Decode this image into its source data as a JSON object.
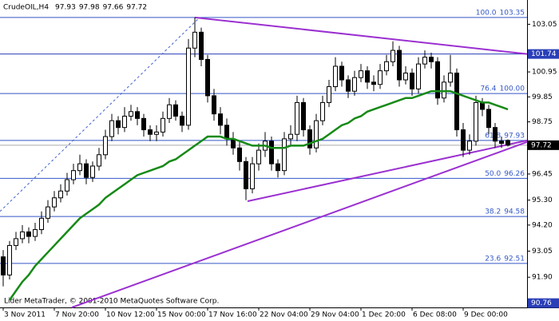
{
  "chart_data": {
    "type": "candlestick",
    "symbol": "CrudeOIL,H4",
    "copyright": "Lider MetaTrader, © 2001-2010 MetaQuotes Software Corp.",
    "open": [
      92.8,
      92.0,
      93.3,
      93.6,
      93.9,
      93.7,
      94.0,
      94.5,
      95.0,
      95.4,
      95.7,
      96.2,
      96.6,
      96.9,
      96.3,
      96.8,
      97.3,
      98.1,
      98.8,
      98.5,
      99.0,
      99.2,
      98.9,
      98.4,
      98.2,
      98.3,
      98.9,
      99.5,
      99.0,
      98.6,
      102.0,
      102.7,
      101.5,
      99.9,
      99.1,
      98.6,
      98.0,
      97.6,
      97.0,
      95.8,
      96.9,
      97.5,
      97.9,
      96.9,
      96.6,
      98.0,
      98.2,
      99.6,
      98.4,
      97.6,
      98.8,
      99.6,
      100.3,
      101.2,
      100.6,
      100.1,
      100.7,
      101.0,
      100.5,
      100.4,
      101.0,
      101.4,
      101.9,
      100.6,
      100.9,
      100.2,
      101.3,
      101.6,
      101.4,
      99.8,
      100.5,
      100.9,
      98.4,
      97.5,
      97.9,
      99.6,
      99.3,
      98.5,
      97.9,
      97.93
    ],
    "high": [
      93.1,
      93.5,
      93.9,
      94.2,
      94.1,
      94.3,
      94.8,
      95.3,
      95.7,
      96.0,
      96.5,
      96.9,
      97.3,
      97.1,
      97.0,
      97.6,
      98.4,
      99.1,
      99.0,
      99.4,
      99.5,
      99.4,
      99.1,
      98.6,
      98.6,
      99.2,
      99.8,
      99.7,
      99.2,
      102.4,
      103.35,
      102.9,
      101.7,
      100.2,
      99.4,
      98.9,
      98.3,
      97.9,
      97.2,
      97.2,
      97.8,
      98.3,
      98.1,
      97.1,
      98.3,
      98.6,
      99.9,
      99.8,
      98.6,
      99.1,
      99.9,
      100.6,
      101.6,
      101.4,
      100.8,
      101.0,
      101.3,
      101.2,
      100.8,
      101.3,
      101.7,
      102.3,
      102.1,
      101.2,
      101.1,
      101.6,
      101.9,
      101.8,
      101.6,
      100.8,
      101.7,
      101.1,
      98.7,
      98.2,
      99.9,
      99.8,
      99.5,
      98.7,
      98.1,
      97.98
    ],
    "low": [
      91.5,
      91.8,
      93.1,
      93.4,
      93.4,
      93.5,
      93.8,
      94.3,
      94.8,
      95.2,
      95.5,
      96.0,
      96.4,
      96.0,
      96.1,
      96.6,
      97.1,
      97.9,
      98.2,
      98.3,
      98.8,
      98.6,
      98.1,
      97.9,
      97.9,
      98.1,
      98.7,
      98.8,
      98.3,
      98.4,
      101.6,
      101.2,
      99.6,
      98.8,
      98.2,
      97.7,
      97.3,
      96.6,
      95.3,
      95.6,
      96.6,
      97.2,
      96.6,
      96.3,
      96.4,
      97.7,
      97.9,
      98.1,
      97.3,
      97.4,
      98.6,
      99.4,
      100.1,
      100.3,
      99.8,
      99.9,
      100.5,
      100.2,
      100.1,
      100.2,
      100.8,
      101.2,
      100.3,
      100.4,
      99.9,
      100.0,
      101.1,
      101.1,
      99.5,
      99.6,
      100.3,
      98.1,
      97.2,
      97.3,
      97.7,
      99.0,
      98.2,
      97.6,
      97.6,
      97.66
    ],
    "close": [
      92.0,
      93.3,
      93.6,
      93.9,
      93.7,
      94.0,
      94.5,
      95.0,
      95.4,
      95.7,
      96.2,
      96.6,
      96.9,
      96.3,
      96.8,
      97.3,
      98.1,
      98.8,
      98.5,
      99.0,
      99.2,
      98.9,
      98.4,
      98.2,
      98.3,
      98.9,
      99.5,
      99.0,
      98.6,
      102.0,
      102.7,
      101.5,
      99.9,
      99.1,
      98.6,
      98.0,
      97.6,
      97.0,
      95.8,
      96.9,
      97.5,
      97.9,
      96.9,
      96.6,
      98.0,
      98.2,
      99.6,
      98.4,
      97.6,
      98.8,
      99.6,
      100.3,
      101.2,
      100.6,
      100.1,
      100.7,
      101.0,
      100.5,
      100.4,
      101.0,
      101.4,
      101.9,
      100.6,
      100.9,
      100.2,
      101.3,
      101.6,
      101.4,
      99.8,
      100.5,
      100.9,
      98.4,
      97.5,
      97.9,
      99.6,
      99.3,
      98.5,
      97.9,
      97.8,
      97.72
    ],
    "ma": {
      "color": "#168a16",
      "values": [
        null,
        90.9,
        91.3,
        91.7,
        92.0,
        92.4,
        92.7,
        93.0,
        93.3,
        93.6,
        93.9,
        94.2,
        94.5,
        94.7,
        94.9,
        95.1,
        95.4,
        95.6,
        95.8,
        96.0,
        96.2,
        96.4,
        96.5,
        96.6,
        96.7,
        96.8,
        97.0,
        97.1,
        97.3,
        97.5,
        97.7,
        97.9,
        98.1,
        98.1,
        98.1,
        98.0,
        98.0,
        97.9,
        97.8,
        97.7,
        97.7,
        97.7,
        97.6,
        97.6,
        97.6,
        97.7,
        97.7,
        97.7,
        97.8,
        97.9,
        98.0,
        98.2,
        98.4,
        98.6,
        98.7,
        98.9,
        99.0,
        99.2,
        99.3,
        99.4,
        99.5,
        99.6,
        99.7,
        99.8,
        99.8,
        99.9,
        100.0,
        100.1,
        100.1,
        100.1,
        100.1,
        100.0,
        99.9,
        99.8,
        99.7,
        99.6,
        99.6,
        99.5,
        99.4,
        99.3
      ]
    },
    "trendlines": [
      {
        "color": "#9b30d0",
        "x": [
          30,
          82
        ],
        "y": [
          103.35,
          101.74
        ]
      },
      {
        "color": "#9b30d0",
        "x": [
          38.25,
          82
        ],
        "y": [
          95.25,
          97.93
        ]
      },
      {
        "color": "#9b30d0",
        "x": [
          10.75,
          82
        ],
        "y": [
          90.57,
          97.86
        ]
      },
      {
        "color": "#4060d0",
        "dashed": true,
        "x": [
          -0.5,
          30.75
        ],
        "y": [
          94.8,
          103.35
        ]
      }
    ],
    "fib": {
      "color": "#3458c8",
      "levels": [
        {
          "ratio": "100.0",
          "price": 103.35
        },
        {
          "ratio": "76.4",
          "price": {
            "value": 100,
            "label": "100.00"
          }
        },
        {
          "ratio": "61.8",
          "price": 97.93
        },
        {
          "ratio": "50.0",
          "price": 96.26
        },
        {
          "ratio": "38.2",
          "price": 94.58
        },
        {
          "ratio": "23.6",
          "price": 92.51
        }
      ]
    },
    "price_boxes": [
      {
        "value": 101.74,
        "color": "#2a3fb8",
        "line": true
      },
      {
        "value": 97.72,
        "color": "#000000",
        "line": true
      },
      {
        "value": 90.76,
        "color": "#2a3fb8",
        "line": false
      }
    ],
    "xlim": [
      -0.5,
      82
    ],
    "ylim": [
      90.57,
      104.12
    ],
    "yticks": [
      103.05,
      {
        "value": 100.95,
        "label": "100.95"
      },
      99.85,
      98.75,
      96.45,
      {
        "value": 95.3,
        "label": "95.30"
      },
      {
        "value": 94.2,
        "label": "94.20"
      },
      93.05,
      {
        "value": 91.9,
        "label": "91.90"
      }
    ],
    "xticks": [
      {
        "value": 0,
        "label": "3 Nov 2011"
      },
      {
        "value": 8,
        "label": "7 Nov 20:00"
      },
      {
        "value": 16,
        "label": "10 Nov 12:00"
      },
      {
        "value": 24,
        "label": "15 Nov 00:00"
      },
      {
        "value": 32,
        "label": "17 Nov 16:00"
      },
      {
        "value": 40,
        "label": "22 Nov 04:00"
      },
      {
        "value": 48,
        "label": "29 Nov 04:00"
      },
      {
        "value": 56,
        "label": "1 Dec 20:00"
      },
      {
        "value": 64,
        "label": "6 Dec 08:00"
      },
      {
        "value": 72,
        "label": "9 Dec 00:00"
      }
    ]
  }
}
